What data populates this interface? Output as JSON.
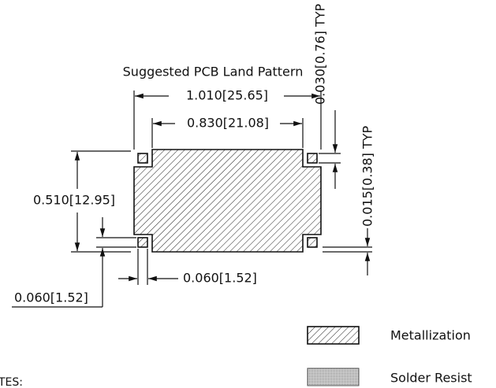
{
  "title": "Suggested PCB Land Pattern",
  "dimensions": {
    "overall_width": "1.010[25.65]",
    "pad_width": "0.830[21.08]",
    "height": "0.510[12.95]",
    "resist_gap": "0.060[1.52]",
    "resist_size": "0.060[1.52]",
    "resist_offset_top": "0.030[0.76] TYP",
    "resist_offset_side": "0.015[0.38] TYP"
  },
  "legend": [
    "Metallization",
    "Solder Resist"
  ],
  "notes_heading": "TES:"
}
